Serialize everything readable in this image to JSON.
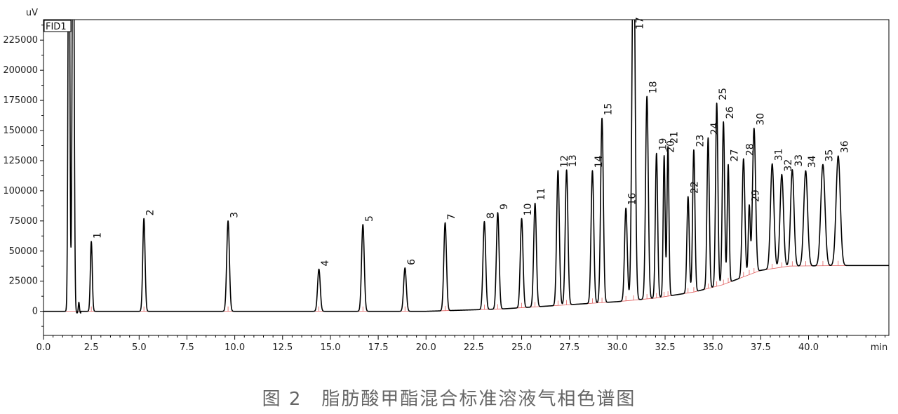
{
  "caption": "图 2　脂肪酸甲酯混合标准溶液气相色谱图",
  "chart_data": {
    "type": "line",
    "detector": "FID1",
    "y_unit": "uV",
    "x_unit": "min",
    "xlim": [
      0.0,
      44.2
    ],
    "ylim": [
      -20000,
      242000
    ],
    "x_ticks": [
      "0.0",
      "2.5",
      "5.0",
      "7.5",
      "10.0",
      "12.5",
      "15.0",
      "17.5",
      "20.0",
      "22.5",
      "25.0",
      "27.5",
      "30.0",
      "32.5",
      "35.0",
      "37.5",
      "40.0"
    ],
    "y_ticks": [
      "0",
      "25000",
      "50000",
      "75000",
      "100000",
      "125000",
      "150000",
      "175000",
      "200000",
      "225000"
    ],
    "grid": false,
    "colors": {
      "trace": "#000000",
      "baseline": "#e06060",
      "frame": "#000000"
    },
    "baseline": [
      [
        0.0,
        0
      ],
      [
        20,
        0
      ],
      [
        24,
        2000
      ],
      [
        27,
        5000
      ],
      [
        30,
        8000
      ],
      [
        32,
        11000
      ],
      [
        34,
        16000
      ],
      [
        35.5,
        22000
      ],
      [
        37.5,
        34000
      ],
      [
        39,
        37500
      ],
      [
        42,
        38000
      ],
      [
        44.2,
        38000
      ]
    ],
    "peaks": [
      {
        "label": "1",
        "rt": 2.5,
        "height": 58000,
        "width": 0.05
      },
      {
        "label": "2",
        "rt": 5.25,
        "height": 77000,
        "width": 0.06
      },
      {
        "label": "3",
        "rt": 9.65,
        "height": 75000,
        "width": 0.07
      },
      {
        "label": "4",
        "rt": 14.4,
        "height": 35000,
        "width": 0.07
      },
      {
        "label": "5",
        "rt": 16.7,
        "height": 72000,
        "width": 0.07
      },
      {
        "label": "6",
        "rt": 18.9,
        "height": 36000,
        "width": 0.07
      },
      {
        "label": "7",
        "rt": 21.0,
        "height": 73000,
        "width": 0.07
      },
      {
        "label": "8",
        "rt": 23.05,
        "height": 73000,
        "width": 0.07
      },
      {
        "label": "9",
        "rt": 23.75,
        "height": 80000,
        "width": 0.07
      },
      {
        "label": "10",
        "rt": 25.0,
        "height": 74000,
        "width": 0.07
      },
      {
        "label": "11",
        "rt": 25.7,
        "height": 86000,
        "width": 0.07
      },
      {
        "label": "12",
        "rt": 26.9,
        "height": 112000,
        "width": 0.07
      },
      {
        "label": "13",
        "rt": 27.35,
        "height": 112000,
        "width": 0.07
      },
      {
        "label": "14",
        "rt": 28.7,
        "height": 110000,
        "width": 0.07
      },
      {
        "label": "15",
        "rt": 29.2,
        "height": 153000,
        "width": 0.07
      },
      {
        "label": "16",
        "rt": 30.45,
        "height": 77000,
        "width": 0.07
      },
      {
        "label": "17",
        "rt": 30.85,
        "height": 320000,
        "width": 0.08
      },
      {
        "label": "18",
        "rt": 31.55,
        "height": 168000,
        "width": 0.07
      },
      {
        "label": "19",
        "rt": 32.05,
        "height": 120000,
        "width": 0.06
      },
      {
        "label": "20",
        "rt": 32.45,
        "height": 117000,
        "width": 0.05
      },
      {
        "label": "21",
        "rt": 32.65,
        "height": 124000,
        "width": 0.05
      },
      {
        "label": "22",
        "rt": 33.7,
        "height": 80000,
        "width": 0.06
      },
      {
        "label": "23",
        "rt": 34.0,
        "height": 118000,
        "width": 0.06
      },
      {
        "label": "24",
        "rt": 34.75,
        "height": 125000,
        "width": 0.06
      },
      {
        "label": "25",
        "rt": 35.2,
        "height": 152000,
        "width": 0.06
      },
      {
        "label": "26",
        "rt": 35.55,
        "height": 135000,
        "width": 0.06
      },
      {
        "label": "27",
        "rt": 35.8,
        "height": 98000,
        "width": 0.05
      },
      {
        "label": "28",
        "rt": 36.6,
        "height": 98000,
        "width": 0.07
      },
      {
        "label": "29",
        "rt": 36.9,
        "height": 57000,
        "width": 0.05
      },
      {
        "label": "30",
        "rt": 37.15,
        "height": 120000,
        "width": 0.08
      },
      {
        "label": "31",
        "rt": 38.1,
        "height": 87000,
        "width": 0.09
      },
      {
        "label": "32",
        "rt": 38.6,
        "height": 77000,
        "width": 0.09
      },
      {
        "label": "33",
        "rt": 39.15,
        "height": 80000,
        "width": 0.09
      },
      {
        "label": "34",
        "rt": 39.85,
        "height": 79000,
        "width": 0.1
      },
      {
        "label": "35",
        "rt": 40.75,
        "height": 84000,
        "width": 0.11
      },
      {
        "label": "36",
        "rt": 41.55,
        "height": 91000,
        "width": 0.11
      }
    ],
    "solvent_peaks": [
      {
        "rt": 1.33,
        "height": 400000,
        "width": 0.045
      },
      {
        "rt": 1.55,
        "height": 400000,
        "width": 0.05
      },
      {
        "rt": 1.85,
        "height": 9000,
        "width": 0.03
      }
    ]
  }
}
